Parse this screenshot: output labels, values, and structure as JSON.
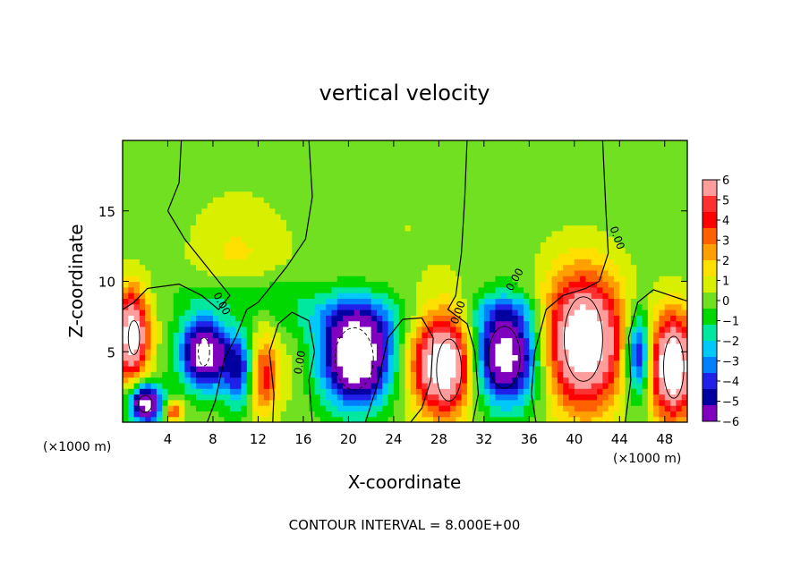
{
  "chart_data": {
    "type": "heatmap",
    "title": "vertical velocity",
    "xlabel": "X-coordinate",
    "ylabel": "Z-coordinate",
    "x_unit_left": "(×1000 m)",
    "x_unit_right": "(×1000 m)",
    "footer": "CONTOUR INTERVAL = 8.000E+00",
    "xlim": [
      0,
      50
    ],
    "ylim": [
      0,
      20
    ],
    "x_ticks": [
      4,
      8,
      12,
      16,
      20,
      24,
      28,
      32,
      36,
      40,
      44,
      48
    ],
    "y_ticks": [
      5,
      10,
      15
    ],
    "contour_labels": [
      "0.00",
      "0.00",
      "0.00",
      "0.00",
      "0.00"
    ],
    "colorbar": {
      "ticks": [
        6,
        5,
        4,
        3,
        2,
        1,
        0,
        -1,
        -2,
        -3,
        -4,
        -5,
        -6
      ],
      "min": -6,
      "max": 6,
      "colors": [
        "#ff9c9c",
        "#ff3030",
        "#ff0000",
        "#ff6000",
        "#ffa000",
        "#ffe000",
        "#d8f000",
        "#70e020",
        "#00d800",
        "#00e8a0",
        "#00c8f8",
        "#0080ff",
        "#2020e8",
        "#0000a0",
        "#8000c0"
      ]
    },
    "cells": [
      {
        "x": 0.8,
        "z": 6.2,
        "rx": 1.5,
        "rz": 3.2,
        "w": 8
      },
      {
        "x": 2.0,
        "z": 1.4,
        "rx": 1.4,
        "rz": 1.4,
        "w": -8
      },
      {
        "x": 4.5,
        "z": 0.8,
        "rx": 0.8,
        "rz": 0.7,
        "w": 4
      },
      {
        "x": 7.2,
        "z": 5.0,
        "rx": 2.0,
        "rz": 2.4,
        "w": -8
      },
      {
        "x": 10.5,
        "z": 3.8,
        "rx": 1.6,
        "rz": 2.6,
        "w": -5
      },
      {
        "x": 12.3,
        "z": 3.4,
        "rx": 1.4,
        "rz": 2.8,
        "w": 5
      },
      {
        "x": 14.8,
        "z": 3.6,
        "rx": 1.5,
        "rz": 2.3,
        "w": 0.6
      },
      {
        "x": 20.7,
        "z": 4.6,
        "rx": 3.0,
        "rz": 3.2,
        "w": -9
      },
      {
        "x": 28.5,
        "z": 4.2,
        "rx": 2.8,
        "rz": 3.5,
        "w": 9
      },
      {
        "x": 33.8,
        "z": 4.8,
        "rx": 3.2,
        "rz": 3.4,
        "w": -8
      },
      {
        "x": 40.8,
        "z": 5.8,
        "rx": 3.5,
        "rz": 4.6,
        "w": 9
      },
      {
        "x": 45.7,
        "z": 4.8,
        "rx": 1.2,
        "rz": 3.0,
        "w": -6
      },
      {
        "x": 48.7,
        "z": 4.0,
        "rx": 2.0,
        "rz": 3.6,
        "w": 9
      },
      {
        "x": 10.0,
        "z": 11.8,
        "rx": 4.0,
        "rz": 4.0,
        "w": 1.3
      },
      {
        "x": 10.5,
        "z": 9.0,
        "rx": 5.5,
        "rz": 1.5,
        "w": -1.6
      },
      {
        "x": 20.5,
        "z": 7.5,
        "rx": 5.5,
        "rz": 1.8,
        "w": -2.0
      },
      {
        "x": 34.0,
        "z": 8.0,
        "rx": 3.0,
        "rz": 1.0,
        "w": -1.4
      },
      {
        "x": 25.0,
        "z": 14.0,
        "rx": 10.0,
        "rz": 5.0,
        "w": 0.4
      }
    ]
  }
}
